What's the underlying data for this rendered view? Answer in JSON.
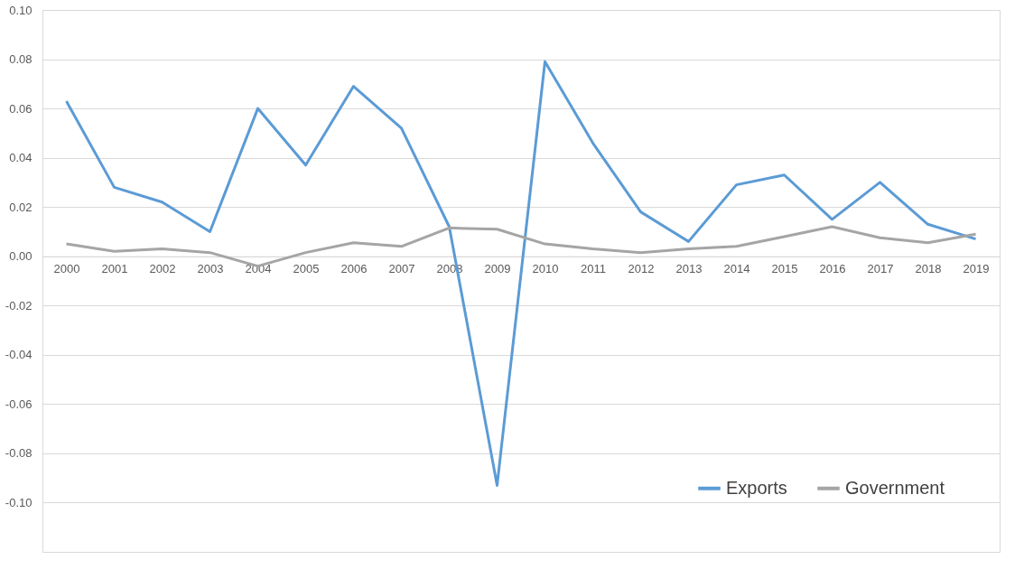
{
  "chart_data": {
    "type": "line",
    "categories": [
      "2000",
      "2001",
      "2002",
      "2003",
      "2004",
      "2005",
      "2006",
      "2007",
      "2008",
      "2009",
      "2010",
      "2011",
      "2012",
      "2013",
      "2014",
      "2015",
      "2016",
      "2017",
      "2018",
      "2019"
    ],
    "series": [
      {
        "name": "Exports",
        "color": "#5b9bd5",
        "values": [
          0.063,
          0.028,
          0.022,
          0.01,
          0.06,
          0.037,
          0.069,
          0.052,
          0.012,
          -0.093,
          0.079,
          0.046,
          0.018,
          0.006,
          0.029,
          0.033,
          0.015,
          0.03,
          0.013,
          0.007
        ]
      },
      {
        "name": "Government",
        "color": "#a5a5a5",
        "values": [
          0.005,
          0.002,
          0.003,
          0.0015,
          -0.004,
          0.0015,
          0.0055,
          0.004,
          0.0115,
          0.011,
          0.005,
          0.003,
          0.0015,
          0.003,
          0.004,
          0.008,
          0.012,
          0.0075,
          0.0055,
          0.009
        ]
      }
    ],
    "ylim": [
      -0.12,
      0.1
    ],
    "yticks": [
      {
        "value": -0.1,
        "label": "-0.10"
      },
      {
        "value": -0.08,
        "label": "-0.08"
      },
      {
        "value": -0.06,
        "label": "-0.06"
      },
      {
        "value": -0.04,
        "label": "-0.04"
      },
      {
        "value": -0.02,
        "label": "-0.02"
      },
      {
        "value": 0,
        "label": "0.00"
      },
      {
        "value": 0.02,
        "label": "0.02"
      },
      {
        "value": 0.04,
        "label": "0.04"
      },
      {
        "value": 0.06,
        "label": "0.06"
      },
      {
        "value": 0.08,
        "label": "0.08"
      },
      {
        "value": 0.1,
        "label": "0.10"
      }
    ],
    "grid": "y",
    "legend": "bottom right",
    "marker": "none",
    "line_style": "solid"
  }
}
